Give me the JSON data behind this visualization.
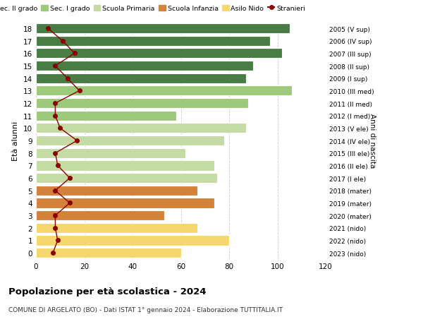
{
  "ages": [
    0,
    1,
    2,
    3,
    4,
    5,
    6,
    7,
    8,
    9,
    10,
    11,
    12,
    13,
    14,
    15,
    16,
    17,
    18
  ],
  "bar_values": [
    60,
    80,
    67,
    53,
    74,
    67,
    75,
    74,
    62,
    78,
    87,
    58,
    88,
    106,
    87,
    90,
    102,
    97,
    105
  ],
  "bar_colors": [
    "#f5d76e",
    "#f5d76e",
    "#f5d76e",
    "#d4813a",
    "#d4813a",
    "#d4813a",
    "#c5dba4",
    "#c5dba4",
    "#c5dba4",
    "#c5dba4",
    "#c5dba4",
    "#9ec97a",
    "#9ec97a",
    "#9ec97a",
    "#4a7c45",
    "#4a7c45",
    "#4a7c45",
    "#4a7c45",
    "#4a7c45"
  ],
  "stranieri_values": [
    7,
    9,
    8,
    8,
    14,
    8,
    14,
    9,
    8,
    17,
    10,
    8,
    8,
    18,
    13,
    8,
    16,
    11,
    5
  ],
  "right_labels": [
    "2023 (nido)",
    "2022 (nido)",
    "2021 (nido)",
    "2020 (mater)",
    "2019 (mater)",
    "2018 (mater)",
    "2017 (I ele)",
    "2016 (II ele)",
    "2015 (III ele)",
    "2014 (IV ele)",
    "2013 (V ele)",
    "2012 (I med)",
    "2011 (II med)",
    "2010 (III med)",
    "2009 (I sup)",
    "2008 (II sup)",
    "2007 (III sup)",
    "2006 (IV sup)",
    "2005 (V sup)"
  ],
  "legend_labels": [
    "Sec. II grado",
    "Sec. I grado",
    "Scuola Primaria",
    "Scuola Infanzia",
    "Asilo Nido",
    "Stranieri"
  ],
  "legend_colors": [
    "#4a7c45",
    "#9ec97a",
    "#c5dba4",
    "#d4813a",
    "#f5d76e",
    "#8b0000"
  ],
  "ylabel_left": "Età alunni",
  "ylabel_right": "Anni di nascita",
  "title": "Popolazione per età scolastica - 2024",
  "subtitle": "COMUNE DI ARGELATO (BO) - Dati ISTAT 1° gennaio 2024 - Elaborazione TUTTITALIA.IT",
  "xlim": [
    0,
    120
  ],
  "xticks": [
    0,
    20,
    40,
    60,
    80,
    100,
    120
  ],
  "background_color": "#ffffff",
  "grid_color": "#cccccc",
  "bar_edge_color": "#ffffff",
  "stranieri_line_color": "#8b0000",
  "stranieri_marker_color": "#8b0000"
}
